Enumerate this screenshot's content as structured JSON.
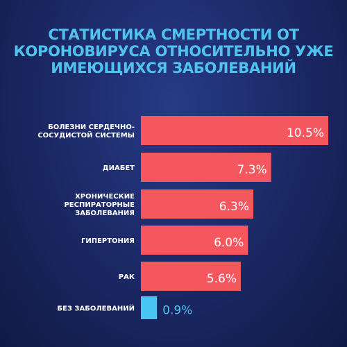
{
  "title_lines": [
    "СТАТИСТИКА СМЕРТНОСТИ ОТ",
    "КОРОНОВИРУСА ОТНОСИТЕЛЬНО УЖЕ",
    "ИМЕЮЩИХСЯ ЗАБОЛЕВАНИЙ"
  ],
  "colors": {
    "bar": "#f4575e",
    "highlight_bar": "#48c6f2",
    "title": "#4fc3ee",
    "text": "#ffffff"
  },
  "chart_data": {
    "type": "bar",
    "orientation": "horizontal",
    "categories": [
      [
        "БОЛЕЗНИ СЕРДЕЧНО-",
        "СОСУДИСТОЙ СИСТЕМЫ"
      ],
      [
        "ДИАБЕТ"
      ],
      [
        "ХРОНИЧЕСКИЕ",
        "РЕСПИРАТОРНЫЕ",
        "ЗАБОЛЕВАНИЯ"
      ],
      [
        "ГИПЕРТОНИЯ"
      ],
      [
        "РАК"
      ],
      [
        "БЕЗ ЗАБОЛЕВАНИЙ"
      ]
    ],
    "values": [
      10.5,
      7.3,
      6.3,
      6.0,
      5.6,
      0.9
    ],
    "value_labels": [
      "10.5%",
      "7.3%",
      "6.3%",
      "6.0%",
      "5.6%",
      "0.9%"
    ],
    "highlight_index": 5,
    "xlim": [
      0,
      10.5
    ],
    "grid": false,
    "legend": "none"
  }
}
